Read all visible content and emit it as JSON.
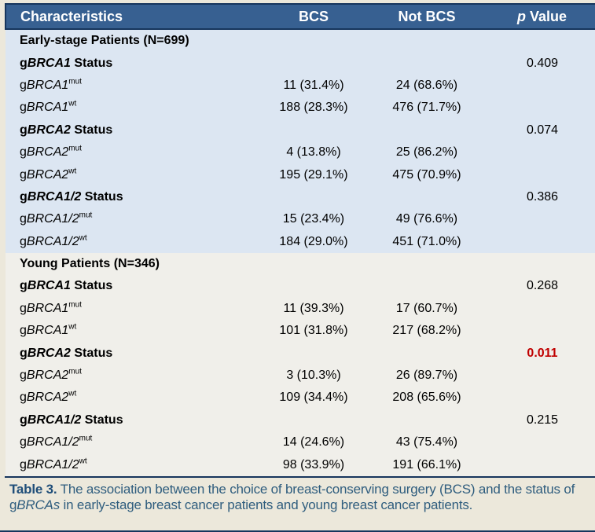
{
  "colors": {
    "page_bg": "#ECE8DB",
    "header_bg": "#376091",
    "header_text": "#FFFFFF",
    "border_dark": "#17365D",
    "early_bg": "#DCE6F2",
    "young_bg": "#F0EFEA",
    "body_text": "#000000",
    "p_red": "#C00000",
    "caption_text": "#2F5D7E",
    "caption_label": "#1F4E79"
  },
  "header": {
    "characteristics": "Characteristics",
    "bcs": "BCS",
    "not_bcs": "Not BCS",
    "p_italic": "p",
    "p_rest": " Value"
  },
  "table": {
    "rows": [
      {
        "type": "section",
        "section": "early",
        "label": "Early-stage Patients (N=699)"
      },
      {
        "type": "status",
        "section": "early",
        "prefix": "g",
        "gene": "BRCA1",
        "suffix": " Status",
        "p": "0.409",
        "p_highlight": false
      },
      {
        "type": "data",
        "section": "early",
        "prefix": "g",
        "gene": "BRCA1",
        "sup": "mut",
        "bcs": "11 (31.4%)",
        "not_bcs": "24 (68.6%)"
      },
      {
        "type": "data",
        "section": "early",
        "prefix": "g",
        "gene": "BRCA1",
        "sup": "wt",
        "bcs": "188 (28.3%)",
        "not_bcs": "476 (71.7%)"
      },
      {
        "type": "status",
        "section": "early",
        "prefix": "g",
        "gene": "BRCA2",
        "suffix": " Status",
        "p": "0.074",
        "p_highlight": false
      },
      {
        "type": "data",
        "section": "early",
        "prefix": "g",
        "gene": "BRCA2",
        "sup": "mut",
        "bcs": "4 (13.8%)",
        "not_bcs": "25 (86.2%)"
      },
      {
        "type": "data",
        "section": "early",
        "prefix": "g",
        "gene": "BRCA2",
        "sup": "wt",
        "bcs": "195 (29.1%)",
        "not_bcs": "475 (70.9%)"
      },
      {
        "type": "status",
        "section": "early",
        "prefix": "g",
        "gene": "BRCA1/2",
        "suffix": " Status",
        "p": "0.386",
        "p_highlight": false
      },
      {
        "type": "data",
        "section": "early",
        "prefix": "g",
        "gene": "BRCA1/2",
        "sup": "mut",
        "bcs": "15 (23.4%)",
        "not_bcs": "49 (76.6%)"
      },
      {
        "type": "data",
        "section": "early",
        "prefix": "g",
        "gene": "BRCA1/2",
        "sup": "wt",
        "bcs": "184 (29.0%)",
        "not_bcs": "451 (71.0%)"
      },
      {
        "type": "section",
        "section": "young",
        "label": "Young Patients (N=346)"
      },
      {
        "type": "status",
        "section": "young",
        "prefix": "g",
        "gene": "BRCA1",
        "suffix": " Status",
        "p": "0.268",
        "p_highlight": false
      },
      {
        "type": "data",
        "section": "young",
        "prefix": "g",
        "gene": "BRCA1",
        "sup": "mut",
        "bcs": "11 (39.3%)",
        "not_bcs": "17 (60.7%)"
      },
      {
        "type": "data",
        "section": "young",
        "prefix": "g",
        "gene": "BRCA1",
        "sup": "wt",
        "bcs": "101 (31.8%)",
        "not_bcs": "217 (68.2%)"
      },
      {
        "type": "status",
        "section": "young",
        "prefix": "g",
        "gene": "BRCA2",
        "suffix": " Status",
        "p": "0.011",
        "p_highlight": true
      },
      {
        "type": "data",
        "section": "young",
        "prefix": "g",
        "gene": "BRCA2",
        "sup": "mut",
        "bcs": "3 (10.3%)",
        "not_bcs": "26 (89.7%)"
      },
      {
        "type": "data",
        "section": "young",
        "prefix": "g",
        "gene": "BRCA2",
        "sup": "wt",
        "bcs": "109 (34.4%)",
        "not_bcs": "208 (65.6%)"
      },
      {
        "type": "status",
        "section": "young",
        "prefix": "g",
        "gene": "BRCA1/2",
        "suffix": " Status",
        "p": "0.215",
        "p_highlight": false
      },
      {
        "type": "data",
        "section": "young",
        "prefix": "g",
        "gene": "BRCA1/2",
        "sup": "mut",
        "bcs": "14 (24.6%)",
        "not_bcs": "43 (75.4%)"
      },
      {
        "type": "data",
        "section": "young",
        "prefix": "g",
        "gene": "BRCA1/2",
        "sup": "wt",
        "bcs": "98 (33.9%)",
        "not_bcs": "191 (66.1%)"
      }
    ]
  },
  "caption": {
    "label": "Table 3.",
    "text_before": " The association between the choice of breast-conserving surgery (BCS) and the status of g",
    "italic": "BRCAs",
    "text_after": " in early-stage breast cancer patients and young breast cancer patients."
  }
}
